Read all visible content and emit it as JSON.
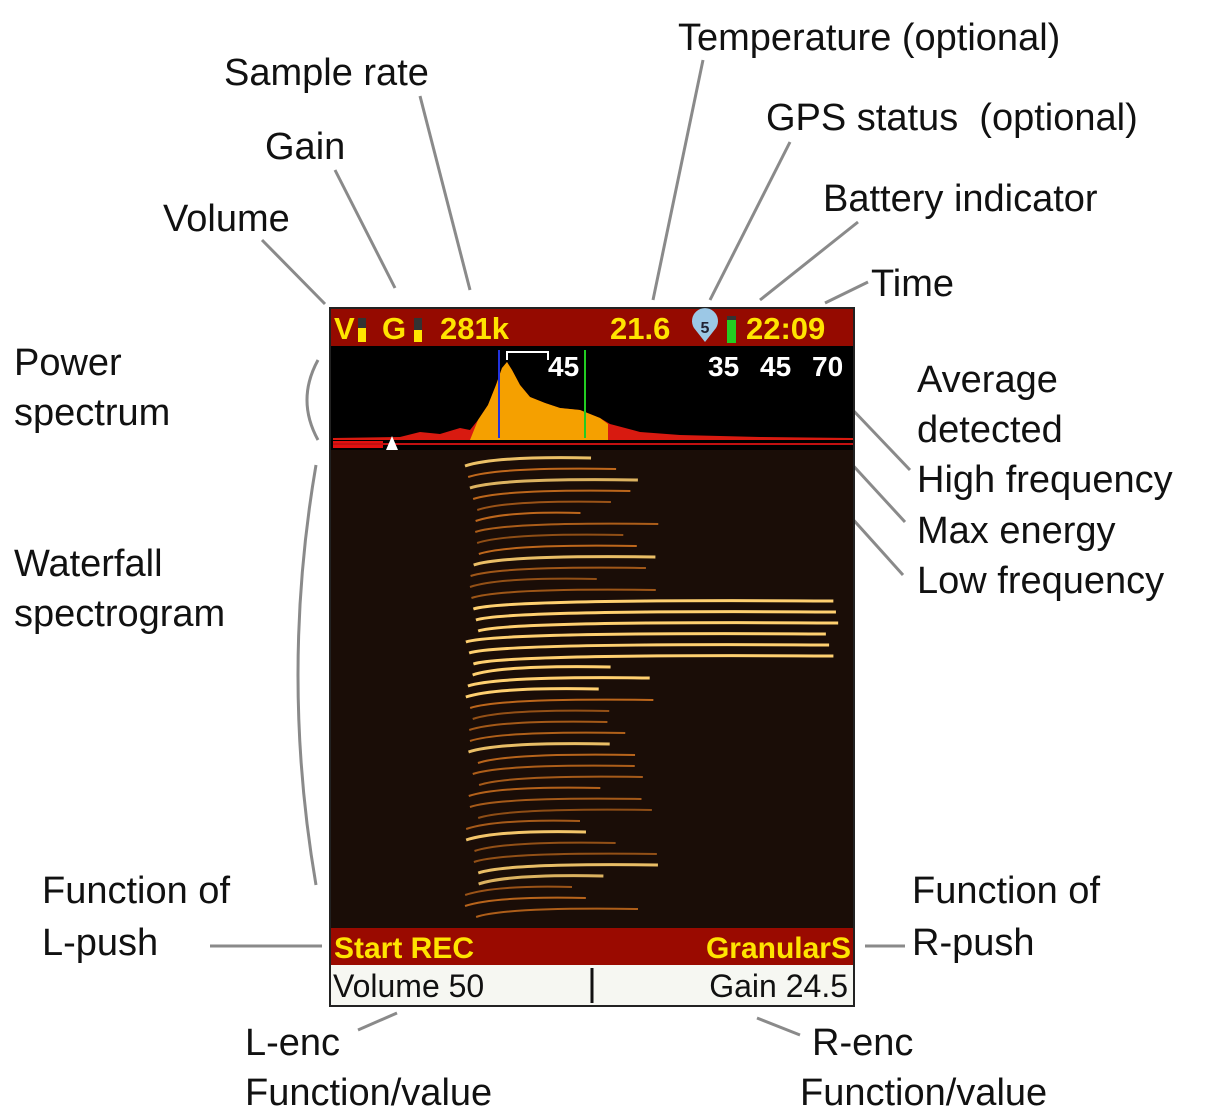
{
  "screen": {
    "status_bar": {
      "volume": "V",
      "gain": "G",
      "sample_rate": "281k",
      "temperature": "21.6",
      "gps_satellites": "5",
      "time": "22:09"
    },
    "spectrum": {
      "average_detected": "45",
      "low_frequency": "35",
      "max_energy": "45",
      "high_frequency": "70"
    },
    "footer": {
      "l_push": "Start REC",
      "r_push": "GranularS",
      "l_enc": "Volume 50",
      "r_enc": "Gain 24.5"
    }
  },
  "callouts": {
    "volume": "Volume",
    "gain": "Gain",
    "sample_rate": "Sample rate",
    "temperature": "Temperature (optional)",
    "gps_status": "GPS status  (optional)",
    "battery": "Battery indicator",
    "time": "Time",
    "power_spectrum": [
      "Power",
      "spectrum"
    ],
    "average_detected": [
      "Average",
      "detected"
    ],
    "high_frequency": "High frequency",
    "max_energy": "Max energy",
    "low_frequency": "Low frequency",
    "waterfall": [
      "Waterfall",
      "spectrogram"
    ],
    "l_push": [
      "Function of",
      "L-push"
    ],
    "r_push": [
      "Function of",
      "R-push"
    ],
    "l_enc": [
      "L-enc",
      "Function/value"
    ],
    "r_enc": [
      "R-enc",
      "Function/value"
    ]
  }
}
